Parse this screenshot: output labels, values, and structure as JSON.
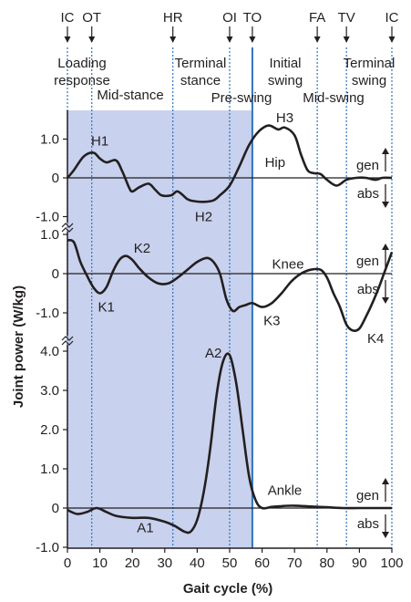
{
  "chart_data": {
    "type": "line",
    "xlabel": "Gait cycle (%)",
    "ylabel": "Joint power (W/kg)",
    "xlim": [
      0,
      100
    ],
    "xticks": [
      "0",
      "10",
      "20",
      "30",
      "40",
      "50",
      "60",
      "70",
      "80",
      "90",
      "100"
    ],
    "event_markers": [
      {
        "label": "IC",
        "x": 0
      },
      {
        "label": "OT",
        "x": 7.5
      },
      {
        "label": "HR",
        "x": 32.5
      },
      {
        "label": "OI",
        "x": 50
      },
      {
        "label": "TO",
        "x": 57
      },
      {
        "label": "FA",
        "x": 77
      },
      {
        "label": "TV",
        "x": 86
      },
      {
        "label": "IC",
        "x": 100
      }
    ],
    "phases": [
      {
        "lines": [
          "Loading",
          "response"
        ]
      },
      {
        "lines": [
          "Mid-stance"
        ]
      },
      {
        "lines": [
          "Terminal",
          "stance"
        ]
      },
      {
        "lines": [
          "Pre-swing"
        ]
      },
      {
        "lines": [
          "Initial",
          "swing"
        ]
      },
      {
        "lines": [
          "Mid-swing"
        ]
      },
      {
        "lines": [
          "Terminal",
          "swing"
        ]
      }
    ],
    "colors": {
      "stance_background": "#c8d1ed",
      "toe_off_line": "#2f73c0",
      "curve": "#231f20"
    },
    "gen_label": "gen",
    "abs_label": "abs",
    "panels": [
      {
        "name": "Hip",
        "yticks": [
          "1.0",
          "0",
          "-1.0"
        ],
        "tick_values": [
          1,
          0,
          -1
        ],
        "x": [
          0,
          2,
          5,
          8,
          10,
          12,
          15,
          17,
          19,
          20,
          22,
          25,
          27,
          29,
          32,
          34,
          37,
          39,
          42,
          45,
          47,
          50,
          53,
          56,
          59,
          62,
          65,
          67,
          70,
          72,
          74,
          76,
          78,
          80,
          83,
          86,
          89,
          92,
          95,
          97,
          100
        ],
        "values": [
          0.0,
          0.2,
          0.55,
          0.65,
          0.5,
          0.4,
          0.45,
          0.15,
          -0.25,
          -0.35,
          -0.25,
          -0.15,
          -0.3,
          -0.45,
          -0.45,
          -0.35,
          -0.55,
          -0.6,
          -0.62,
          -0.58,
          -0.45,
          -0.2,
          0.3,
          0.85,
          1.2,
          1.35,
          1.25,
          1.3,
          1.1,
          0.6,
          0.2,
          0.12,
          0.1,
          -0.05,
          -0.2,
          -0.05,
          0.0,
          0.0,
          -0.05,
          0.0,
          0.0
        ],
        "labels": [
          {
            "text": "H1",
            "x": 10,
            "y": 0.95
          },
          {
            "text": "H2",
            "x": 42,
            "y": -1.0
          },
          {
            "text": "H3",
            "x": 67,
            "y": 1.55
          },
          {
            "text": "Hip",
            "x": 64,
            "y": 0.4
          }
        ]
      },
      {
        "name": "Knee",
        "yticks": [
          "1.0",
          "0",
          "-1.0"
        ],
        "tick_values": [
          1,
          0,
          -1
        ],
        "x": [
          0,
          2,
          4,
          6,
          8,
          10,
          12,
          14,
          16,
          18,
          20,
          22,
          25,
          28,
          31,
          34,
          37,
          40,
          43,
          45,
          47,
          49,
          51,
          53,
          55,
          57,
          60,
          63,
          66,
          69,
          72,
          75,
          78,
          80,
          82,
          84,
          86,
          88,
          90,
          92,
          94,
          96,
          98,
          100
        ],
        "values": [
          0.85,
          0.8,
          0.3,
          -0.05,
          -0.35,
          -0.5,
          -0.35,
          0.05,
          0.35,
          0.45,
          0.35,
          0.15,
          -0.1,
          -0.25,
          -0.25,
          -0.1,
          0.1,
          0.3,
          0.4,
          0.3,
          0.0,
          -0.65,
          -0.95,
          -0.85,
          -0.8,
          -0.75,
          -0.85,
          -0.75,
          -0.5,
          -0.2,
          0.0,
          0.1,
          0.1,
          -0.1,
          -0.5,
          -0.85,
          -1.3,
          -1.45,
          -1.4,
          -1.1,
          -0.75,
          -0.35,
          0.1,
          0.55
        ],
        "labels": [
          {
            "text": "K1",
            "x": 12,
            "y": -0.85
          },
          {
            "text": "K2",
            "x": 23,
            "y": 0.65
          },
          {
            "text": "K3",
            "x": 63,
            "y": -1.2
          },
          {
            "text": "K4",
            "x": 95,
            "y": -1.65
          },
          {
            "text": "Knee",
            "x": 68,
            "y": 0.25
          }
        ]
      },
      {
        "name": "Ankle",
        "yticks": [
          "4.0",
          "3.0",
          "2.0",
          "1.0",
          "0",
          "-1.0"
        ],
        "tick_values": [
          4,
          3,
          2,
          1,
          0,
          -1
        ],
        "x": [
          0,
          3,
          6,
          9,
          12,
          15,
          20,
          25,
          30,
          33,
          36,
          38,
          40,
          42,
          44,
          46,
          48,
          50,
          52,
          54,
          56,
          58,
          60,
          63,
          66,
          70,
          75,
          80,
          85,
          90,
          95,
          100
        ],
        "values": [
          -0.05,
          -0.15,
          -0.1,
          0.0,
          -0.1,
          -0.2,
          -0.25,
          -0.25,
          -0.35,
          -0.45,
          -0.6,
          -0.6,
          -0.3,
          0.4,
          1.5,
          2.9,
          3.75,
          3.9,
          3.2,
          2.0,
          0.8,
          0.2,
          0.0,
          0.03,
          0.05,
          0.06,
          0.04,
          0.02,
          0.0,
          0.0,
          0.0,
          0.0
        ],
        "labels": [
          {
            "text": "A1",
            "x": 24,
            "y": -0.5
          },
          {
            "text": "A2",
            "x": 45,
            "y": 3.95
          },
          {
            "text": "Ankle",
            "x": 67,
            "y": 0.45
          }
        ]
      }
    ]
  }
}
